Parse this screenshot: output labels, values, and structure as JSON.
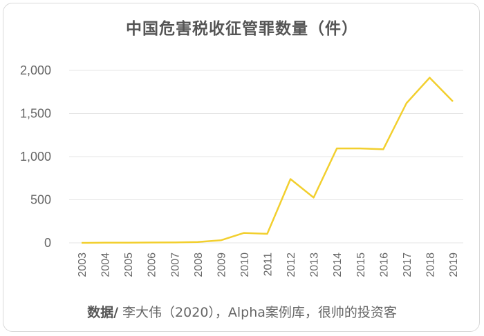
{
  "chart_data": {
    "type": "line",
    "title": "中国危害税收征管罪数量（件）",
    "x": [
      "2003",
      "2004",
      "2005",
      "2006",
      "2007",
      "2008",
      "2009",
      "2010",
      "2011",
      "2012",
      "2013",
      "2014",
      "2015",
      "2016",
      "2017",
      "2018",
      "2019"
    ],
    "series": [
      {
        "values": [
          0,
          2,
          2,
          4,
          5,
          10,
          30,
          115,
          105,
          740,
          525,
          1095,
          1095,
          1085,
          1620,
          1915,
          1640
        ]
      }
    ],
    "yticks": [
      "0",
      "500",
      "1,000",
      "1,500",
      "2,000"
    ],
    "ylim": [
      0,
      2000
    ],
    "grid": true,
    "line_color": "#f2cf2e",
    "grid_color": "#e6e6e6"
  },
  "source": {
    "label": "数据/",
    "text": " 李大伟（2020），Alpha案例库，很帅的投资客"
  }
}
